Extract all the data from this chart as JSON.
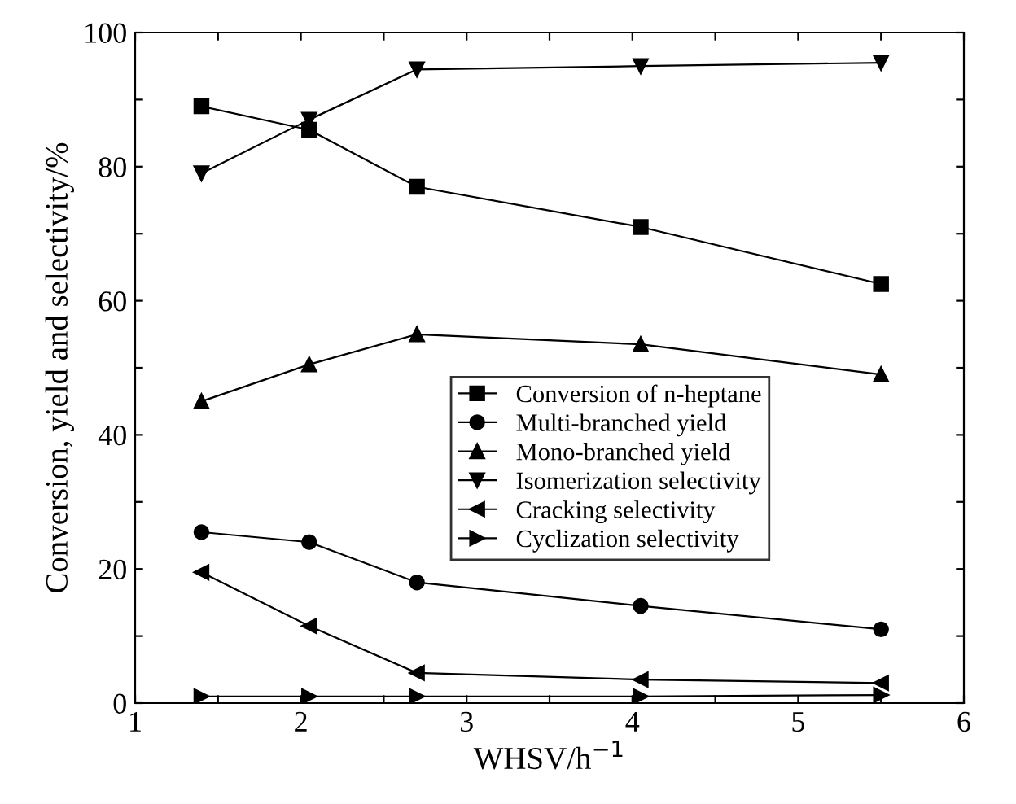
{
  "chart_data": {
    "type": "line",
    "xlabel": "WHSV/h$^{−1}$",
    "ylabel": "Conversion, yield and selectivity/%",
    "x": [
      1.4,
      2.05,
      2.7,
      4.05,
      5.5
    ],
    "xlim": [
      1,
      6
    ],
    "xticks": [
      1,
      {
        "value": 1.5,
        "label": null
      },
      2,
      {
        "value": 2.5,
        "label": null
      },
      3,
      {
        "value": 3.5,
        "label": null
      },
      4,
      {
        "value": 4.5,
        "label": null
      },
      5,
      {
        "value": 5.5,
        "label": null
      },
      6
    ],
    "ylim": [
      0,
      100
    ],
    "yticks": [
      0,
      {
        "value": 10,
        "label": null
      },
      20,
      {
        "value": 30,
        "label": null
      },
      40,
      {
        "value": 50,
        "label": null
      },
      60,
      {
        "value": 70,
        "label": null
      },
      80,
      {
        "value": 90,
        "label": null
      },
      100
    ],
    "grid": false,
    "legend": "center right",
    "line_style": "solid",
    "series": [
      {
        "name": "Conversion of n-heptane",
        "color": "#000000",
        "marker": "square",
        "values": [
          89,
          85.5,
          77,
          71,
          62.5
        ]
      },
      {
        "name": "Multi-branched yield",
        "color": "#000000",
        "marker": "circle",
        "values": [
          25.5,
          24,
          18,
          14.5,
          11
        ]
      },
      {
        "name": "Mono-branched yield",
        "color": "#000000",
        "marker": "triangle",
        "values": [
          45,
          50.5,
          55,
          53.5,
          49
        ]
      },
      {
        "name": "Isomerization selectivity",
        "color": "#000000",
        "marker": "triangle_down",
        "values": [
          79,
          87,
          94.5,
          95,
          95.5
        ]
      },
      {
        "name": "Cracking selectivity",
        "color": "#000000",
        "marker": "triangle_left",
        "values": [
          19.5,
          11.5,
          4.5,
          3.5,
          3
        ]
      },
      {
        "name": "Cyclization selectivity",
        "color": "#000000",
        "marker": "triangle_right",
        "values": [
          1,
          1,
          1,
          1,
          1.2
        ]
      }
    ]
  }
}
